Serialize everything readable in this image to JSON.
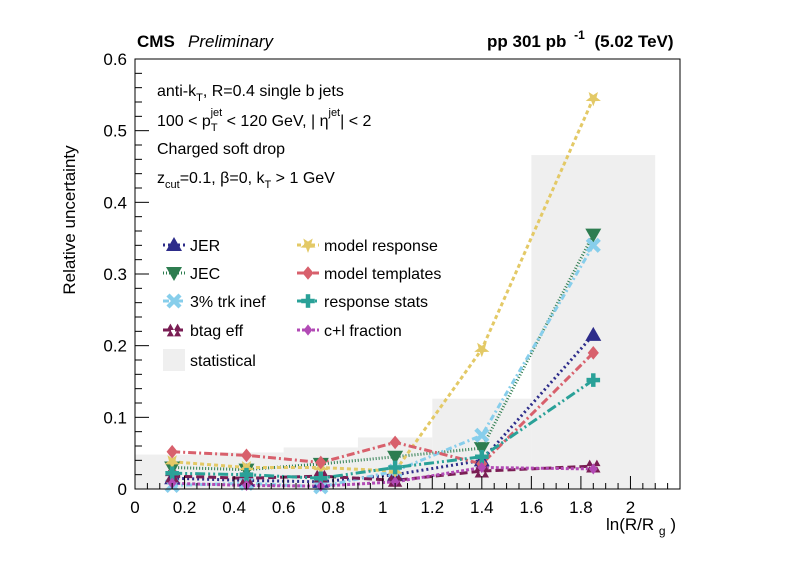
{
  "header": {
    "experiment": "CMS",
    "status": "Preliminary",
    "luminosity": "pp 301 pb",
    "lumi_exp": "-1",
    "energy": "(5.02 TeV)"
  },
  "annotations": {
    "line1": {
      "a": "anti-k",
      "a_sub": "T",
      "b": ", R=0.4 single b jets"
    },
    "line2": {
      "a": "100 < p",
      "a_sub": "T",
      "a_sup": "jet",
      "b": " < 120 GeV, | η",
      "b_sup": "jet",
      "c": "| < 2"
    },
    "line3": {
      "a": "Charged soft drop"
    },
    "line4": {
      "a": "z",
      "a_sub": "cut",
      "b": "=0.1,  β=0, k",
      "b_sub": "T",
      "c": " > 1 GeV"
    }
  },
  "chart_data": {
    "type": "line",
    "xlabel": "ln(R/R",
    "xlabel_sub": "g",
    "xlabel_close": ")",
    "ylabel": "Relative uncertainty",
    "xlim": [
      0,
      2.2
    ],
    "ylim": [
      0,
      0.6
    ],
    "xticks": [
      "0",
      "0.2",
      "0.4",
      "0.6",
      "0.8",
      "1",
      "1.2",
      "1.4",
      "1.6",
      "1.8",
      "2"
    ],
    "xtick_values": [
      0,
      0.2,
      0.4,
      0.6,
      0.8,
      1.0,
      1.2,
      1.4,
      1.6,
      1.8,
      2.0
    ],
    "yticks": [
      "0",
      "0.1",
      "0.2",
      "0.3",
      "0.4",
      "0.5",
      "0.6"
    ],
    "ytick_values": [
      0,
      0.1,
      0.2,
      0.3,
      0.4,
      0.5,
      0.6
    ],
    "x": [
      0.15,
      0.45,
      0.75,
      1.05,
      1.4,
      1.85
    ],
    "statistical": {
      "name": "statistical",
      "color": "#efefef",
      "bins": [
        {
          "x0": 0.0,
          "x1": 0.3,
          "value": 0.048
        },
        {
          "x0": 0.3,
          "x1": 0.6,
          "value": 0.051
        },
        {
          "x0": 0.6,
          "x1": 0.9,
          "value": 0.058
        },
        {
          "x0": 0.9,
          "x1": 1.2,
          "value": 0.072
        },
        {
          "x0": 1.2,
          "x1": 1.6,
          "value": 0.126
        },
        {
          "x0": 1.6,
          "x1": 2.1,
          "value": 0.466
        }
      ]
    },
    "series": [
      {
        "name": "JER",
        "color": "#2d2c8a",
        "marker": "triangle-up",
        "dash": "2,3",
        "values": [
          0.015,
          0.012,
          0.01,
          0.02,
          0.04,
          0.215
        ]
      },
      {
        "name": "JEC",
        "color": "#2e7d50",
        "marker": "triangle-down",
        "dash": "1,2",
        "values": [
          0.03,
          0.027,
          0.035,
          0.045,
          0.057,
          0.355
        ]
      },
      {
        "name": "3% trk inef",
        "color": "#87ceeb",
        "marker": "cross-x",
        "dash": "6,3,2,3",
        "values": [
          0.005,
          0.008,
          0.003,
          0.025,
          0.075,
          0.34
        ]
      },
      {
        "name": "btag eff",
        "color": "#7a1e54",
        "marker": "triangle-pair",
        "dash": "8,4",
        "values": [
          0.018,
          0.015,
          0.018,
          0.012,
          0.025,
          0.032
        ]
      },
      {
        "name": "model response",
        "color": "#e3c966",
        "marker": "star",
        "dash": "4,3",
        "values": [
          0.038,
          0.03,
          0.03,
          0.025,
          0.195,
          0.545
        ]
      },
      {
        "name": "model templates",
        "color": "#d8606c",
        "marker": "diamond",
        "dash": "8,3,2,3",
        "values": [
          0.052,
          0.047,
          0.037,
          0.065,
          0.035,
          0.19
        ]
      },
      {
        "name": "response stats",
        "color": "#2aa198",
        "marker": "plus",
        "dash": "10,3,2,3,2,3",
        "values": [
          0.022,
          0.02,
          0.015,
          0.03,
          0.045,
          0.152
        ]
      },
      {
        "name": "c+l fraction",
        "color": "#b24ab5",
        "marker": "diamond-small",
        "dash": "3,2",
        "values": [
          0.008,
          0.005,
          0.004,
          0.01,
          0.03,
          0.028
        ]
      }
    ]
  }
}
